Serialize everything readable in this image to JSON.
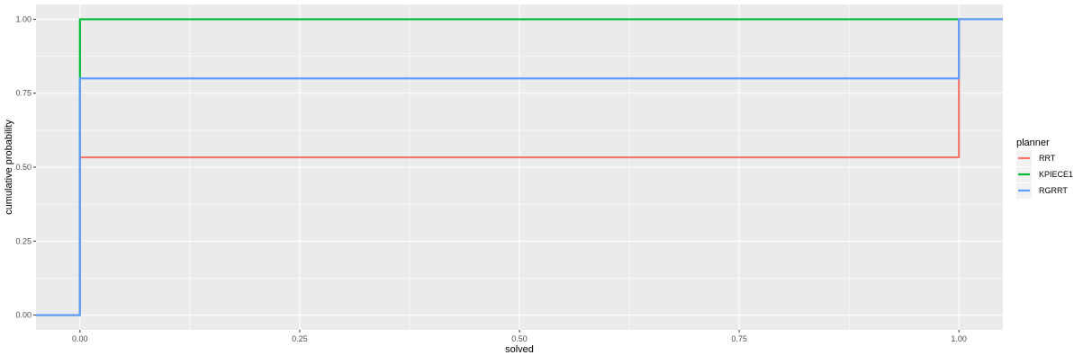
{
  "chart_data": {
    "type": "line",
    "step": true,
    "title": "",
    "xlabel": "solved",
    "ylabel": "cumulative probability",
    "xlim": [
      -0.05,
      1.05
    ],
    "ylim": [
      -0.05,
      1.05
    ],
    "x_ticks": [
      0.0,
      0.25,
      0.5,
      0.75,
      1.0
    ],
    "x_tick_labels": [
      "0.00",
      "0.25",
      "0.50",
      "0.75",
      "1.00"
    ],
    "y_ticks": [
      0.0,
      0.25,
      0.5,
      0.75,
      1.0
    ],
    "y_tick_labels": [
      "0.00",
      "0.25",
      "0.50",
      "0.75",
      "1.00"
    ],
    "grid": true,
    "legend_title": "planner",
    "legend_position": "right",
    "series": [
      {
        "name": "RRT",
        "color": "#F8766D",
        "x": [
          -0.05,
          0.0,
          1.0,
          1.05
        ],
        "y": [
          0.0,
          0.5333,
          1.0,
          1.0
        ]
      },
      {
        "name": "KPIECE1",
        "color": "#00BA38",
        "x": [
          -0.05,
          0.0,
          1.05
        ],
        "y": [
          0.0,
          1.0,
          1.0
        ]
      },
      {
        "name": "RGRRT",
        "color": "#619CFF",
        "x": [
          -0.05,
          0.0,
          1.0,
          1.05
        ],
        "y": [
          0.0,
          0.8,
          1.0,
          1.0
        ]
      }
    ]
  },
  "colors": {
    "panel_background": "#EBEBEB",
    "grid_major": "#FFFFFF",
    "axis_text": "#4D4D4D"
  }
}
